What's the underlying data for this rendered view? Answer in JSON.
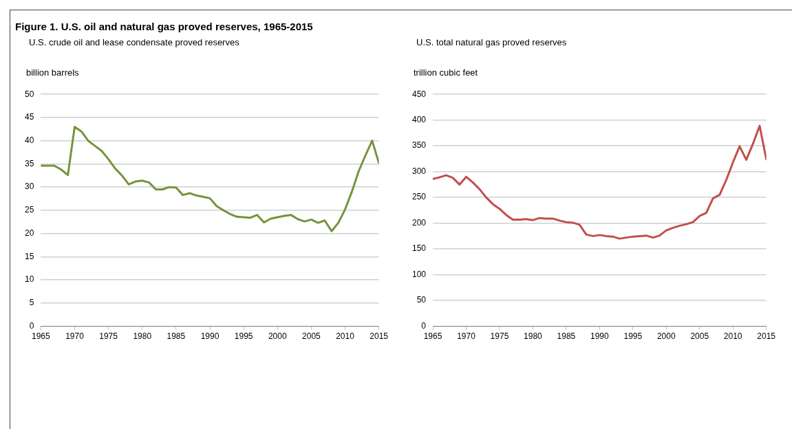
{
  "chart_data": [
    {
      "type": "line",
      "title": "Figure 1. U.S. oil and natural gas proved reserves, 1965-2015",
      "subtitle": "U.S. crude oil and lease condensate proved reserves",
      "ylabel": "billion barrels",
      "x": [
        1965,
        1966,
        1967,
        1968,
        1969,
        1970,
        1971,
        1972,
        1973,
        1974,
        1975,
        1976,
        1977,
        1978,
        1979,
        1980,
        1981,
        1982,
        1983,
        1984,
        1985,
        1986,
        1987,
        1988,
        1989,
        1990,
        1991,
        1992,
        1993,
        1994,
        1995,
        1996,
        1997,
        1998,
        1999,
        2000,
        2001,
        2002,
        2003,
        2004,
        2005,
        2006,
        2007,
        2008,
        2009,
        2010,
        2011,
        2012,
        2013,
        2014,
        2015
      ],
      "series": [
        {
          "color": "#77933c",
          "values": [
            34.6,
            34.6,
            34.6,
            33.8,
            32.6,
            43.0,
            42.0,
            40.0,
            38.9,
            37.8,
            36.0,
            34.0,
            32.5,
            30.6,
            31.2,
            31.4,
            31.0,
            29.5,
            29.5,
            30.0,
            29.9,
            28.3,
            28.7,
            28.2,
            27.9,
            27.6,
            25.9,
            25.0,
            24.2,
            23.6,
            23.5,
            23.4,
            24.0,
            22.4,
            23.2,
            23.5,
            23.8,
            24.0,
            23.1,
            22.6,
            23.0,
            22.3,
            22.8,
            20.5,
            22.3,
            25.2,
            29.0,
            33.4,
            36.8,
            40.0,
            35.2
          ]
        }
      ],
      "xlim": [
        1965,
        2015
      ],
      "xticks": [
        1965,
        1970,
        1975,
        1980,
        1985,
        1990,
        1995,
        2000,
        2005,
        2010,
        2015
      ],
      "ylim": [
        0,
        50
      ],
      "yticks": [
        0,
        5,
        10,
        15,
        20,
        25,
        30,
        35,
        40,
        45,
        50
      ],
      "grid": "y",
      "legend": false,
      "marker": "none",
      "line_style": "solid"
    },
    {
      "type": "line",
      "subtitle": "U.S. total natural gas proved reserves",
      "ylabel": "trillion cubic feet",
      "x": [
        1965,
        1966,
        1967,
        1968,
        1969,
        1970,
        1971,
        1972,
        1973,
        1974,
        1975,
        1976,
        1977,
        1978,
        1979,
        1980,
        1981,
        1982,
        1983,
        1984,
        1985,
        1986,
        1987,
        1988,
        1989,
        1990,
        1991,
        1992,
        1993,
        1994,
        1995,
        1996,
        1997,
        1998,
        1999,
        2000,
        2001,
        2002,
        2003,
        2004,
        2005,
        2006,
        2007,
        2008,
        2009,
        2010,
        2011,
        2012,
        2013,
        2014,
        2015
      ],
      "series": [
        {
          "color": "#c0504d",
          "values": [
            286,
            289,
            293,
            288,
            275,
            290,
            279,
            266,
            250,
            237,
            228,
            216,
            207,
            207,
            208,
            206,
            210,
            209,
            209,
            205,
            202,
            201,
            197,
            178,
            175,
            177,
            175,
            174,
            170,
            172,
            174,
            175,
            176,
            172,
            176,
            186,
            191,
            195,
            198,
            202,
            214,
            220,
            248,
            255,
            284,
            318,
            349,
            323,
            354,
            389,
            324
          ]
        }
      ],
      "xlim": [
        1965,
        2015
      ],
      "xticks": [
        1965,
        1970,
        1975,
        1980,
        1985,
        1990,
        1995,
        2000,
        2005,
        2010,
        2015
      ],
      "ylim": [
        0,
        450
      ],
      "yticks": [
        0,
        50,
        100,
        150,
        200,
        250,
        300,
        350,
        400,
        450
      ],
      "grid": "y",
      "legend": false,
      "marker": "none",
      "line_style": "solid"
    }
  ]
}
